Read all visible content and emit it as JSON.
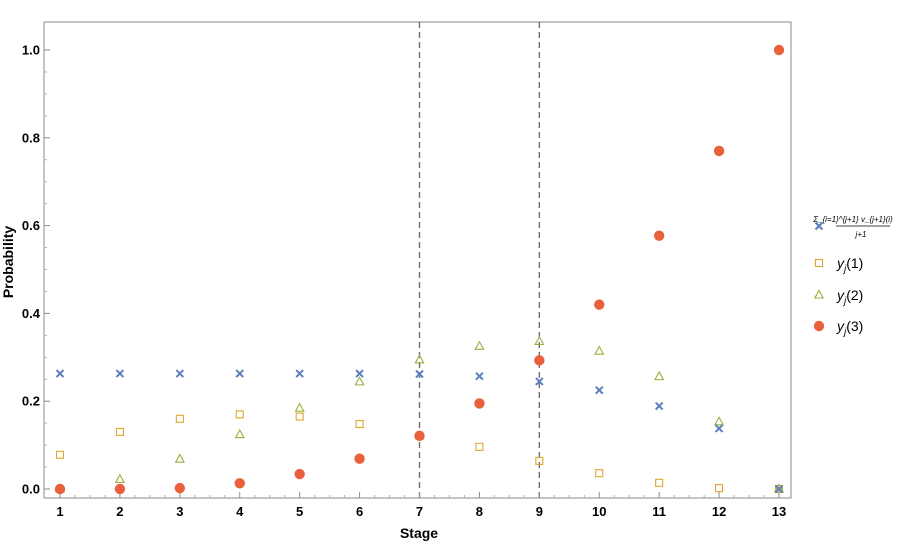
{
  "chart_data": {
    "type": "scatter",
    "xlabel": "Stage",
    "ylabel": "Probability",
    "xlim": [
      1,
      13
    ],
    "ylim": [
      0,
      1.0
    ],
    "x_ticks": [
      1,
      2,
      3,
      4,
      5,
      6,
      7,
      8,
      9,
      10,
      11,
      12,
      13
    ],
    "y_ticks": [
      0.0,
      0.2,
      0.4,
      0.6,
      0.8,
      1.0
    ],
    "y_tick_labels": [
      "0.0",
      "0.2",
      "0.4",
      "0.6",
      "0.8",
      "1.0"
    ],
    "vertical_reference_lines": [
      7,
      9
    ],
    "legend_position": "right",
    "x": [
      1,
      2,
      3,
      4,
      5,
      6,
      7,
      8,
      9,
      10,
      11,
      12,
      13
    ],
    "series": [
      {
        "legend_numerator": "Σ_{i=1}^{j+1} v_{j+1}(i)",
        "legend_denominator": "j+1",
        "marker": "cross",
        "color": "#5b7fbf",
        "values": [
          0.263,
          0.263,
          0.263,
          0.263,
          0.263,
          0.263,
          0.262,
          0.257,
          0.245,
          0.225,
          0.189,
          0.138,
          0.0
        ]
      },
      {
        "name": "y_j(1)",
        "legend_main": "y",
        "legend_sub": "j",
        "legend_arg": "(1)",
        "marker": "square",
        "color": "#e0a52c",
        "values": [
          0.078,
          0.13,
          0.16,
          0.17,
          0.165,
          0.148,
          0.121,
          0.096,
          0.064,
          0.036,
          0.014,
          0.002,
          0.0
        ]
      },
      {
        "name": "y_j(2)",
        "legend_main": "y",
        "legend_sub": "j",
        "legend_arg": "(2)",
        "marker": "triangle",
        "color": "#9ab03c",
        "values": [
          0.0,
          0.022,
          0.068,
          0.124,
          0.184,
          0.244,
          0.294,
          0.325,
          0.336,
          0.314,
          0.256,
          0.153,
          0.0
        ]
      },
      {
        "name": "y_j(3)",
        "legend_main": "y",
        "legend_sub": "j",
        "legend_arg": "(3)",
        "marker": "disk",
        "color": "#e8603c",
        "values": [
          0.0,
          0.0,
          0.002,
          0.013,
          0.034,
          0.069,
          0.121,
          0.195,
          0.293,
          0.42,
          0.577,
          0.77,
          1.0
        ]
      }
    ]
  }
}
